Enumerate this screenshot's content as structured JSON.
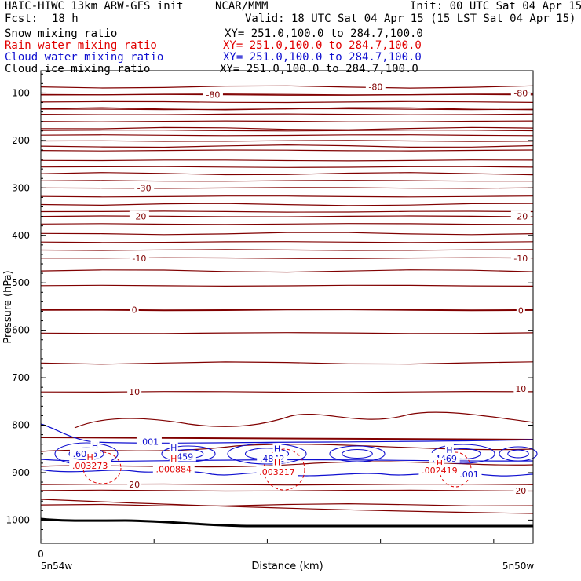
{
  "header": {
    "model": "HAIC-HIWC 13km ARW-GFS init",
    "org": "NCAR/MMM",
    "init": "Init: 00 UTC Sat 04 Apr 15",
    "fcst_label": "Fcst:",
    "fcst_value": "18 h",
    "valid": "Valid: 18 UTC Sat 04 Apr 15 (15 LST Sat 04 Apr 15)"
  },
  "fields": [
    {
      "name": "Snow mixing ratio",
      "xy": "XY= 251.0,100.0 to 284.7,100.0",
      "color": "#000000"
    },
    {
      "name": "Rain water mixing ratio",
      "xy": "XY= 251.0,100.0 to 284.7,100.0",
      "color": "#e00000"
    },
    {
      "name": "Cloud water mixing ratio",
      "xy": "XY= 251.0,100.0 to 284.7,100.0",
      "color": "#1010d0"
    },
    {
      "name": "Cloud ice mixing ratio",
      "xy": "XY= 251.0,100.0 to 284.7,100.0",
      "color": "#000000"
    }
  ],
  "chart_data": {
    "type": "line",
    "ylabel": "Pressure (hPa)",
    "xlabel": "Distance (km)",
    "y_ticks": [
      "100",
      "200",
      "300",
      "400",
      "500",
      "600",
      "700",
      "800",
      "900",
      "1000"
    ],
    "ylim": [
      1050,
      50
    ],
    "x_origin_label": "0",
    "x_left_label": "5n54w",
    "x_right_label": "5n50w",
    "temperature_contour_color": "#800000",
    "temperature_labels": [
      {
        "text": "-80",
        "p": 87,
        "d": 0.68
      },
      {
        "text": "-80",
        "p": 103,
        "d": 0.35
      },
      {
        "text": "-80",
        "p": 100,
        "d": 0.975
      },
      {
        "text": "-30",
        "p": 300,
        "d": 0.21
      },
      {
        "text": "-20",
        "p": 360,
        "d": 0.2
      },
      {
        "text": "-20",
        "p": 360,
        "d": 0.975
      },
      {
        "text": "-10",
        "p": 448,
        "d": 0.2
      },
      {
        "text": "-10",
        "p": 448,
        "d": 0.975
      },
      {
        "text": "0",
        "p": 557,
        "d": 0.19
      },
      {
        "text": "0",
        "p": 558,
        "d": 0.975
      },
      {
        "text": "10",
        "p": 730,
        "d": 0.19
      },
      {
        "text": "10",
        "p": 723,
        "d": 0.975
      },
      {
        "text": "20",
        "p": 925,
        "d": 0.19
      },
      {
        "text": "20",
        "p": 938,
        "d": 0.975
      }
    ],
    "cloud_water_labels": [
      {
        "text": ".001",
        "p": 835,
        "d": 0.22
      },
      {
        "text": ".001",
        "p": 903,
        "d": 0.87
      },
      {
        "text": "H",
        "p": 843,
        "d": 0.11
      },
      {
        "text": ".6036",
        "p": 860,
        "d": 0.09
      },
      {
        "text": "H",
        "p": 847,
        "d": 0.27
      },
      {
        "text": ".459",
        "p": 866,
        "d": 0.29
      },
      {
        "text": "H",
        "p": 850,
        "d": 0.48
      },
      {
        "text": ".4842",
        "p": 870,
        "d": 0.47
      },
      {
        "text": "H",
        "p": 852,
        "d": 0.83
      },
      {
        "text": ".4469",
        "p": 870,
        "d": 0.82
      }
    ],
    "rain_labels": [
      {
        "text": "H",
        "p": 867,
        "d": 0.1
      },
      {
        "text": ".003273",
        "p": 885,
        "d": 0.1
      },
      {
        "text": "H",
        "p": 870,
        "d": 0.27
      },
      {
        "text": ".000884",
        "p": 893,
        "d": 0.27
      },
      {
        "text": "H",
        "p": 878,
        "d": 0.48
      },
      {
        "text": ".003217",
        "p": 898,
        "d": 0.48
      },
      {
        "text": "H",
        "p": 880,
        "d": 0.81
      },
      {
        "text": ".002419",
        "p": 895,
        "d": 0.81
      }
    ]
  }
}
